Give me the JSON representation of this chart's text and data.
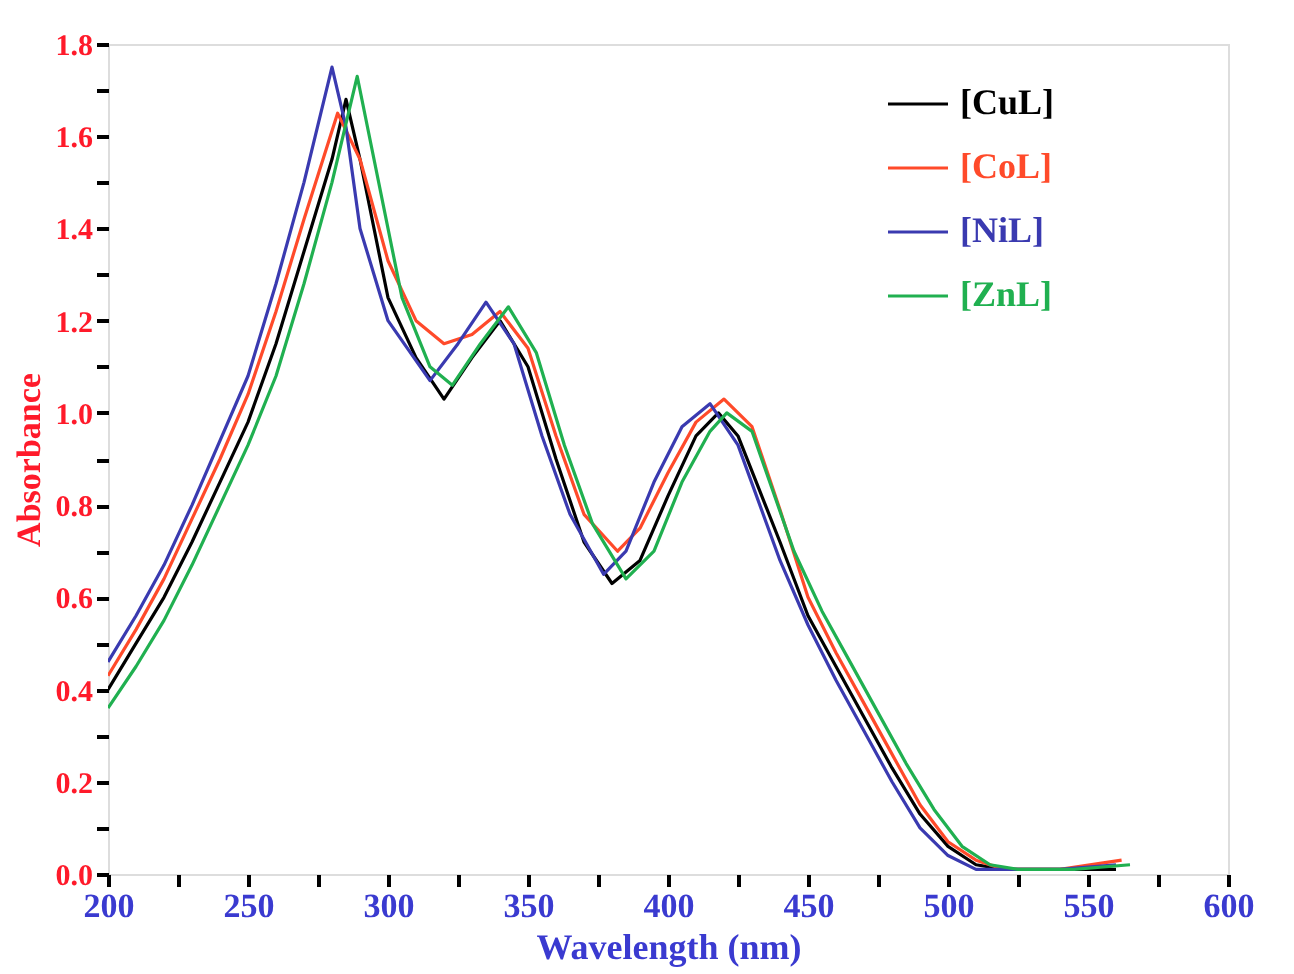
{
  "chart_data": {
    "type": "line",
    "xlabel": "Wavelength (nm)",
    "ylabel": "Absorbance",
    "xlim": [
      200,
      600
    ],
    "ylim": [
      0,
      1.8
    ],
    "xticks": [
      200,
      {
        "value": 225,
        "label": null
      },
      250,
      {
        "value": 275,
        "label": null
      },
      300,
      {
        "value": 325,
        "label": null
      },
      350,
      {
        "value": 375,
        "label": null
      },
      400,
      {
        "value": 425,
        "label": null
      },
      450,
      {
        "value": 475,
        "label": null
      },
      500,
      {
        "value": 525,
        "label": null
      },
      550,
      {
        "value": 575,
        "label": null
      },
      600
    ],
    "yticks": [
      {
        "value": 0,
        "label": "0.0"
      },
      {
        "value": 0.1,
        "label": null
      },
      0.2,
      {
        "value": 0.3,
        "label": null
      },
      0.4,
      {
        "value": 0.5,
        "label": null
      },
      0.6,
      {
        "value": 0.7,
        "label": null
      },
      0.8,
      {
        "value": 0.9,
        "label": null
      },
      {
        "value": 1,
        "label": "1.0"
      },
      {
        "value": 1.1,
        "label": null
      },
      1.2,
      {
        "value": 1.3,
        "label": null
      },
      1.4,
      {
        "value": 1.5,
        "label": null
      },
      1.6,
      {
        "value": 1.7,
        "label": null
      },
      1.8
    ],
    "grid": false,
    "legend": "top right",
    "line_style": "solid",
    "series": [
      {
        "name": "[CuL]",
        "color": "#000000",
        "x": [
          200,
          210,
          220,
          230,
          240,
          250,
          260,
          270,
          280,
          285,
          290,
          300,
          310,
          320,
          330,
          340,
          350,
          360,
          370,
          380,
          390,
          400,
          410,
          418,
          425,
          440,
          450,
          460,
          470,
          480,
          490,
          500,
          510,
          520,
          540,
          560
        ],
        "values": [
          0.4,
          0.5,
          0.6,
          0.72,
          0.85,
          0.98,
          1.15,
          1.35,
          1.55,
          1.68,
          1.55,
          1.25,
          1.12,
          1.03,
          1.12,
          1.2,
          1.1,
          0.9,
          0.72,
          0.63,
          0.68,
          0.82,
          0.95,
          1.0,
          0.95,
          0.72,
          0.56,
          0.45,
          0.34,
          0.23,
          0.13,
          0.06,
          0.02,
          0.01,
          0.01,
          0.01
        ]
      },
      {
        "name": "[CoL]",
        "color": "#ff4a2a",
        "x": [
          200,
          210,
          220,
          230,
          240,
          250,
          260,
          270,
          282,
          290,
          300,
          310,
          320,
          330,
          340,
          350,
          360,
          370,
          382,
          390,
          400,
          410,
          420,
          430,
          440,
          450,
          460,
          470,
          480,
          490,
          500,
          510,
          520,
          540,
          562
        ],
        "values": [
          0.43,
          0.53,
          0.64,
          0.77,
          0.9,
          1.04,
          1.22,
          1.42,
          1.65,
          1.55,
          1.33,
          1.2,
          1.15,
          1.17,
          1.22,
          1.14,
          0.95,
          0.78,
          0.7,
          0.75,
          0.87,
          0.98,
          1.03,
          0.97,
          0.79,
          0.6,
          0.48,
          0.37,
          0.26,
          0.15,
          0.07,
          0.03,
          0.01,
          0.01,
          0.03
        ]
      },
      {
        "name": "[NiL]",
        "color": "#3a3ab0",
        "x": [
          200,
          210,
          220,
          230,
          240,
          250,
          260,
          270,
          280,
          285,
          290,
          300,
          315,
          325,
          335,
          345,
          355,
          365,
          377,
          385,
          395,
          405,
          415,
          425,
          440,
          450,
          460,
          470,
          480,
          490,
          500,
          510,
          520,
          540,
          560
        ],
        "values": [
          0.46,
          0.56,
          0.67,
          0.8,
          0.94,
          1.08,
          1.28,
          1.5,
          1.75,
          1.62,
          1.4,
          1.2,
          1.07,
          1.15,
          1.24,
          1.15,
          0.95,
          0.78,
          0.65,
          0.7,
          0.85,
          0.97,
          1.02,
          0.93,
          0.68,
          0.54,
          0.42,
          0.31,
          0.2,
          0.1,
          0.04,
          0.01,
          0.01,
          0.01,
          0.02
        ]
      },
      {
        "name": "[ZnL]",
        "color": "#20b050",
        "x": [
          200,
          210,
          220,
          230,
          240,
          250,
          260,
          270,
          280,
          289,
          295,
          305,
          315,
          323,
          333,
          343,
          353,
          363,
          373,
          385,
          395,
          405,
          415,
          421,
          430,
          445,
          455,
          465,
          475,
          485,
          495,
          505,
          515,
          525,
          545,
          565
        ],
        "values": [
          0.36,
          0.45,
          0.55,
          0.67,
          0.8,
          0.93,
          1.08,
          1.28,
          1.5,
          1.73,
          1.55,
          1.25,
          1.1,
          1.06,
          1.15,
          1.23,
          1.13,
          0.93,
          0.76,
          0.64,
          0.7,
          0.85,
          0.96,
          1.0,
          0.96,
          0.7,
          0.57,
          0.46,
          0.35,
          0.24,
          0.14,
          0.06,
          0.02,
          0.01,
          0.01,
          0.02
        ]
      }
    ]
  }
}
